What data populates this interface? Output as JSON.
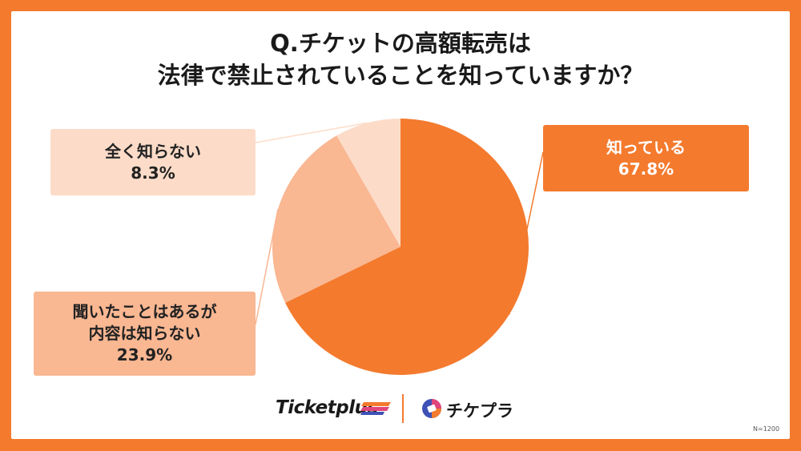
{
  "title": {
    "line1": "Q.チケットの高額転売は",
    "line2": "法律で禁止されていることを知っていますか？"
  },
  "chart_data": {
    "type": "pie",
    "start_angle_deg": 0,
    "direction": "clockwise",
    "slices": [
      {
        "label": "知っている",
        "value": 67.8,
        "value_label": "67.8%",
        "color": "#F47A2E"
      },
      {
        "label": "聞いたことはあるが内容は知らない",
        "label_lines": [
          "聞いたことはあるが",
          "内容は知らない"
        ],
        "value": 23.9,
        "value_label": "23.9%",
        "color": "#F9B792"
      },
      {
        "label": "全く知らない",
        "value": 8.3,
        "value_label": "8.3%",
        "color": "#FCDCC8"
      }
    ]
  },
  "colors": {
    "accent": "#F47A2E",
    "light": "#F9B792",
    "lightest": "#FCDCC8"
  },
  "footer": {
    "brand1": "Ticketplus",
    "brand2": "チケプラ",
    "note": "N=1200"
  }
}
